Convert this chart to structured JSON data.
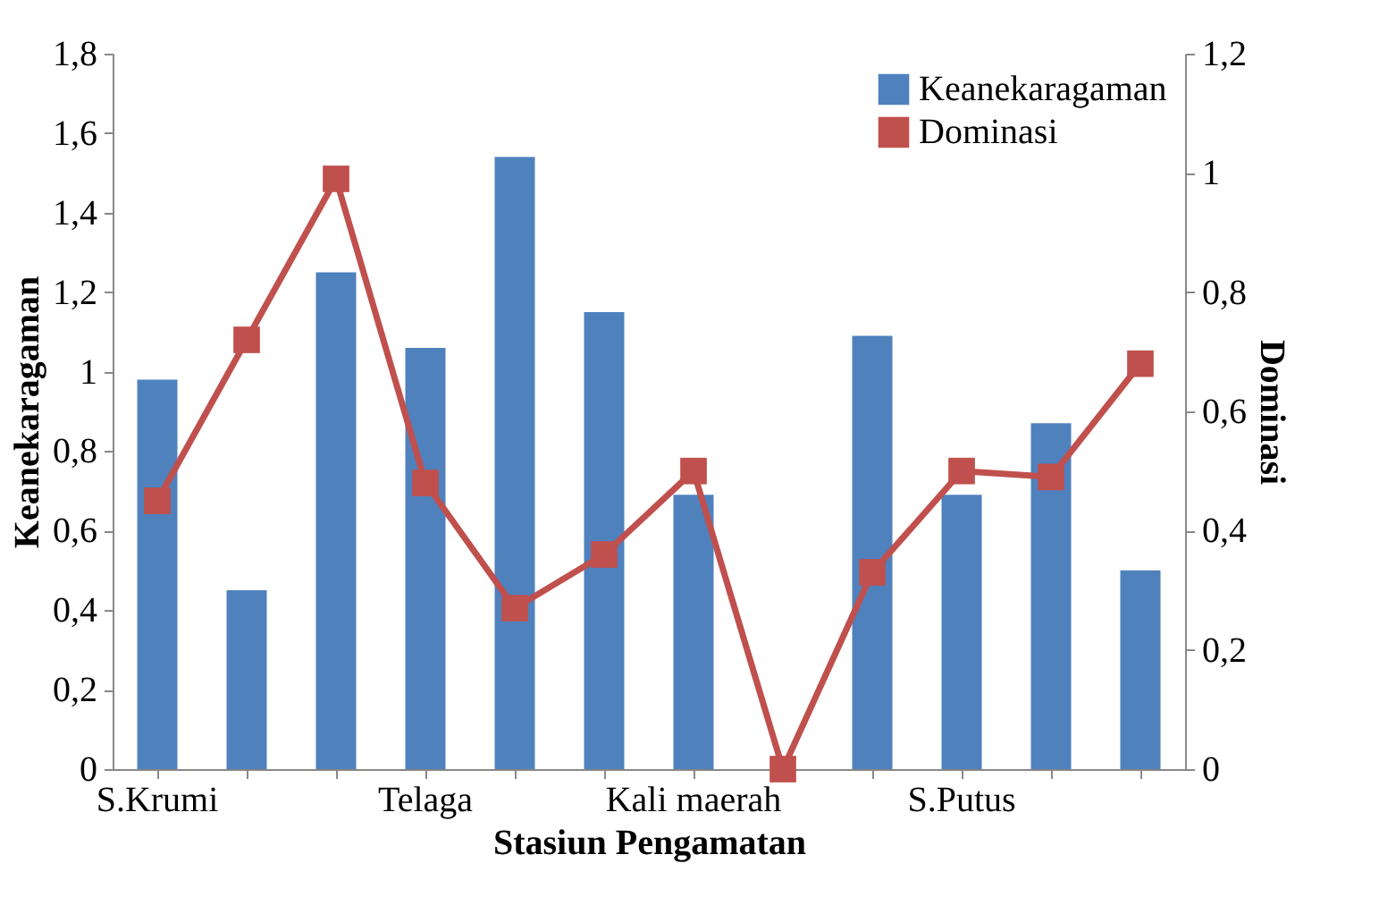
{
  "chart_data": {
    "type": "bar",
    "xlabel": "Stasiun Pengamatan",
    "ylabel": "Keanekaragaman",
    "y2label": "Dominasi",
    "categories": [
      "S.Krumi",
      null,
      null,
      "Telaga",
      null,
      null,
      "Kali maerah",
      null,
      null,
      "S.Putus",
      null,
      null
    ],
    "series": [
      {
        "name": "Keanekaragaman",
        "color": "#4f81bd",
        "values": [
          0.98,
          0.45,
          1.25,
          1.06,
          1.54,
          1.15,
          0.69,
          0,
          1.09,
          0.69,
          0.87,
          0.5
        ]
      },
      {
        "name": "Dominasi",
        "type": "line",
        "axis": "y2",
        "color": "#c0504d",
        "marker": "square",
        "values": [
          0.45,
          0.72,
          0.99,
          0.48,
          0.27,
          0.36,
          0.5,
          0,
          0.33,
          0.5,
          0.49,
          0.68
        ]
      }
    ],
    "ylim": [
      0,
      1.8
    ],
    "yticks": [
      0,
      {
        "value": 0.2,
        "label": "0,2"
      },
      {
        "value": 0.4,
        "label": "0,4"
      },
      {
        "value": 0.6,
        "label": "0,6"
      },
      {
        "value": 0.8,
        "label": "0,8"
      },
      1,
      {
        "value": 1.2,
        "label": "1,2"
      },
      {
        "value": 1.4,
        "label": "1,4"
      },
      {
        "value": 1.6,
        "label": "1,6"
      },
      {
        "value": 1.8,
        "label": "1,8"
      }
    ],
    "y2lim": [
      0,
      1.2
    ],
    "y2ticks": [
      0,
      {
        "value": 0.2,
        "label": "0,2"
      },
      {
        "value": 0.4,
        "label": "0,4"
      },
      {
        "value": 0.6,
        "label": "0,6"
      },
      {
        "value": 0.8,
        "label": "0,8"
      },
      1,
      {
        "value": 1.2,
        "label": "1,2"
      }
    ],
    "grid": false,
    "legend": "top right"
  }
}
